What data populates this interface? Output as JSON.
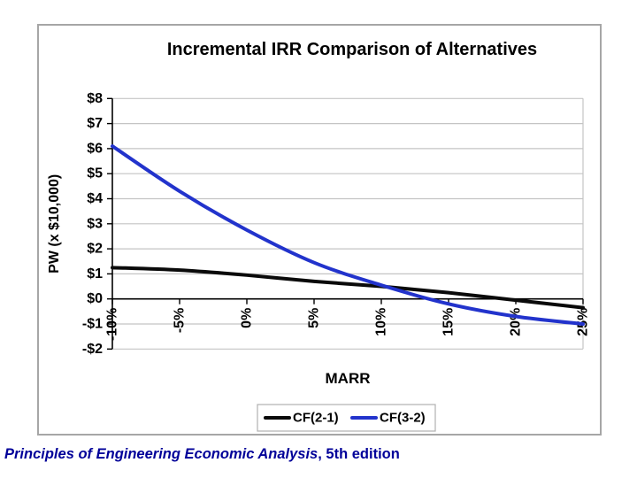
{
  "chart_data": {
    "type": "line",
    "title": "Incremental IRR Comparison of Alternatives",
    "xlabel": "MARR",
    "ylabel": "PW (x $10,000)",
    "categories": [
      "-10%",
      "-5%",
      "0%",
      "5%",
      "10%",
      "15%",
      "20%",
      "25%"
    ],
    "x_values_percent": [
      -10,
      -5,
      0,
      5,
      10,
      15,
      20,
      25
    ],
    "series": [
      {
        "name": "CF(2-1)",
        "color": "#0a0a0a",
        "values": [
          1.25,
          1.15,
          0.95,
          0.7,
          0.5,
          0.25,
          -0.05,
          -0.35
        ]
      },
      {
        "name": "CF(3-2)",
        "color": "#2233cc",
        "values": [
          6.1,
          4.3,
          2.75,
          1.45,
          0.55,
          -0.2,
          -0.7,
          -1.0
        ]
      }
    ],
    "y_tick_labels": [
      "$8",
      "$7",
      "$6",
      "$5",
      "$4",
      "$3",
      "$2",
      "$1",
      "$0",
      "-$1",
      "-$2"
    ],
    "y_tick_values": [
      8,
      7,
      6,
      5,
      4,
      3,
      2,
      1,
      0,
      -1,
      -2
    ],
    "ylim": [
      -2,
      8
    ],
    "grid": true,
    "gridline_color": "#c4c4c4",
    "axis_color": "#000000",
    "legend_position": "bottom-center",
    "legend_entries": [
      "CF(2-1)",
      "CF(3-2)"
    ],
    "annotations": {
      "curves_cross_near": "10.5%",
      "blue_zero_crossing_near": "13.7%",
      "black_zero_crossing_near": "19%"
    }
  },
  "footer": {
    "caption_italic": "Principles of Engineering Economic Analysis",
    "caption_rest": ", 5th edition",
    "caption_color": "#000099"
  }
}
